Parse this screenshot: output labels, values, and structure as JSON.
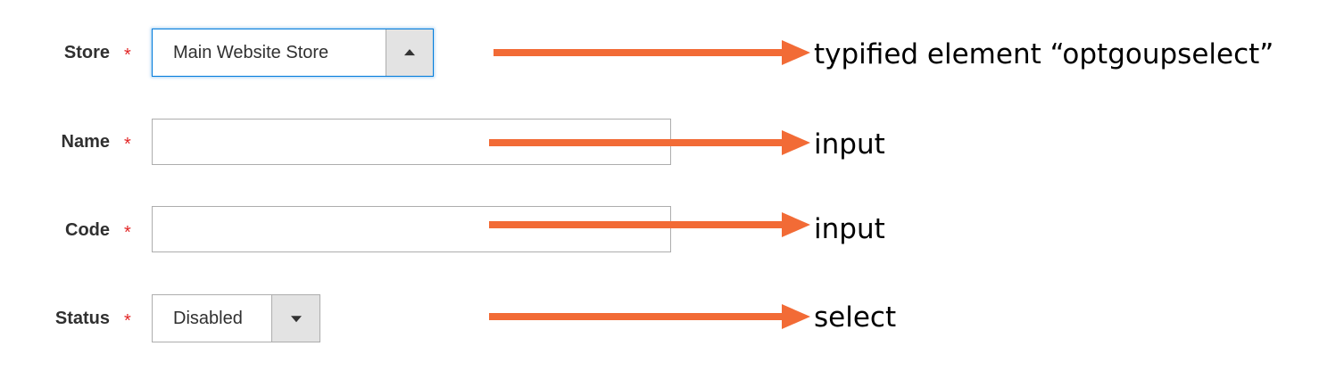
{
  "form": {
    "store": {
      "label": "Store",
      "required_mark": "*",
      "selected_value": "Main Website Store",
      "state": "open",
      "arrow_icon": "triangle-up-icon"
    },
    "name": {
      "label": "Name",
      "required_mark": "*",
      "value": "",
      "placeholder": ""
    },
    "code": {
      "label": "Code",
      "required_mark": "*",
      "value": "",
      "placeholder": ""
    },
    "status": {
      "label": "Status",
      "required_mark": "*",
      "selected_value": "Disabled",
      "state": "closed",
      "arrow_icon": "triangle-down-icon"
    }
  },
  "annotations": [
    {
      "text": "typified element “optgoupselect”",
      "arrow_icon": "arrow-right-icon"
    },
    {
      "text": "input",
      "arrow_icon": "arrow-right-icon"
    },
    {
      "text": "input",
      "arrow_icon": "arrow-right-icon"
    },
    {
      "text": "select",
      "arrow_icon": "arrow-right-icon"
    }
  ],
  "colors": {
    "annotation_arrow": "#f26b36",
    "required_star": "#e22626",
    "focus_border": "#007bdb",
    "field_border": "#adadad",
    "label_text": "#303030"
  }
}
